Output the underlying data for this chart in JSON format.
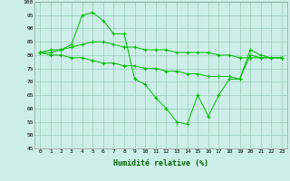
{
  "xlabel": "Humidité relative (%)",
  "background_color": "#cceee8",
  "grid_color": "#99ccbb",
  "line_color": "#00bb00",
  "marker": "+",
  "ylim": [
    45,
    100
  ],
  "yticks": [
    45,
    50,
    55,
    60,
    65,
    70,
    75,
    80,
    85,
    90,
    95,
    100
  ],
  "xticks": [
    0,
    1,
    2,
    3,
    4,
    5,
    6,
    7,
    8,
    9,
    10,
    11,
    12,
    13,
    14,
    15,
    16,
    17,
    18,
    19,
    20,
    21,
    22,
    23
  ],
  "series1": [
    81,
    82,
    82,
    84,
    95,
    96,
    93,
    88,
    88,
    71,
    69,
    64,
    60,
    55,
    54,
    65,
    57,
    65,
    71,
    71,
    82,
    80,
    79,
    79
  ],
  "series2": [
    81,
    81,
    82,
    83,
    84,
    85,
    85,
    84,
    83,
    83,
    82,
    82,
    82,
    81,
    81,
    81,
    81,
    80,
    80,
    79,
    79,
    79,
    79,
    79
  ],
  "series3": [
    81,
    80,
    80,
    79,
    79,
    78,
    77,
    77,
    76,
    76,
    75,
    75,
    74,
    74,
    73,
    73,
    72,
    72,
    72,
    71,
    80,
    79,
    79,
    79
  ]
}
